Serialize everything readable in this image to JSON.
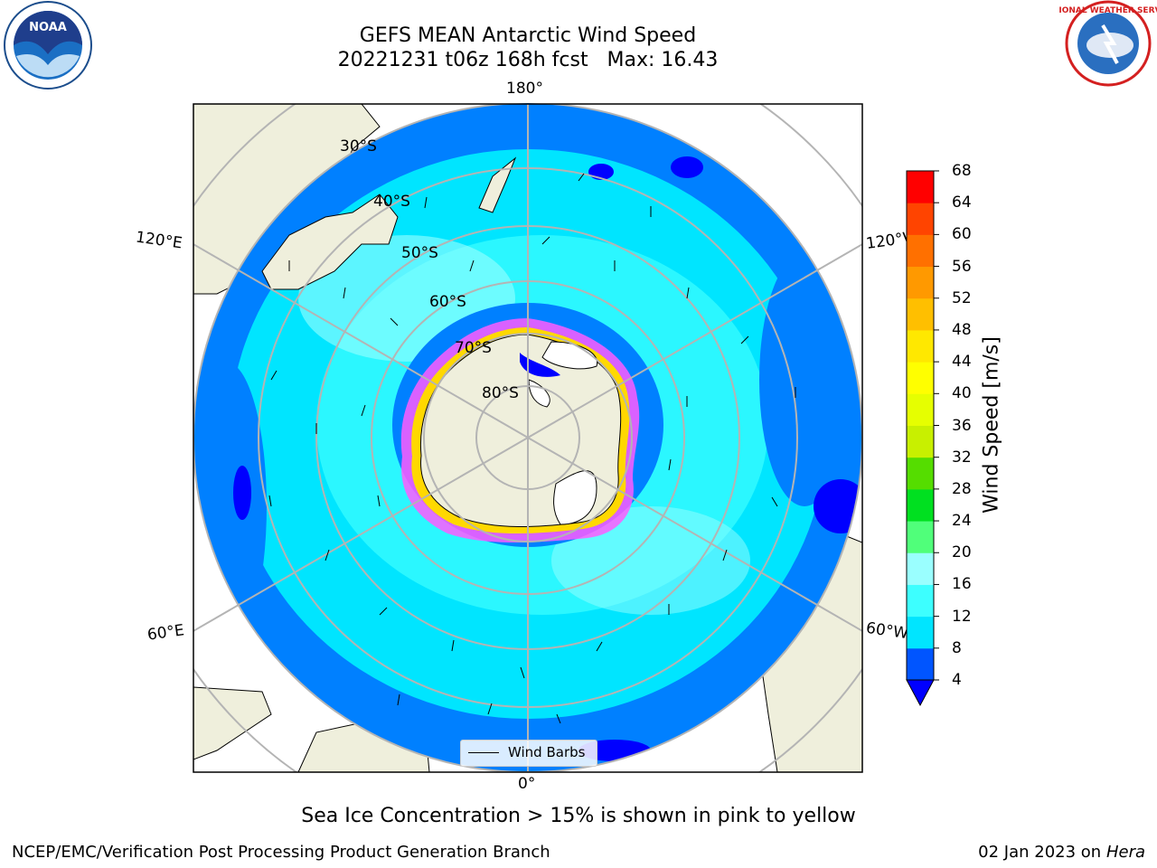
{
  "title": {
    "line1": "GEFS MEAN Antarctic Wind Speed",
    "line2": "20221231 t06z 168h fcst   Max: 16.43"
  },
  "map": {
    "projection": "south-polar-stereographic",
    "longitude_labels": {
      "top": "180°",
      "bottom": "0°",
      "upper_left": "120°E",
      "upper_right": "120°W",
      "lower_left": "60°E",
      "lower_right": "60°W"
    },
    "latitude_labels": [
      "30°S",
      "40°S",
      "50°S",
      "60°S",
      "70°S",
      "80°S"
    ],
    "legend": {
      "label": "Wind Barbs"
    }
  },
  "colorbar": {
    "label": "Wind Speed [m/s]",
    "ticks": [
      "4",
      "8",
      "12",
      "16",
      "20",
      "24",
      "28",
      "32",
      "36",
      "40",
      "44",
      "48",
      "52",
      "56",
      "60",
      "64",
      "68"
    ],
    "colors": [
      "#0055ff",
      "#00e5ff",
      "#3dffff",
      "#9affff",
      "#50ff7a",
      "#00e020",
      "#55dd00",
      "#c8f000",
      "#e6ff00",
      "#ffff00",
      "#ffe800",
      "#ffbf00",
      "#ff9900",
      "#ff7000",
      "#ff4400",
      "#ff0000"
    ],
    "extend_color": "#0000ff"
  },
  "logos": {
    "left": {
      "name": "noaa-logo",
      "text": "NOAA"
    },
    "right": {
      "name": "nws-logo",
      "text": "NATIONAL WEATHER SERVICE"
    }
  },
  "footnote": "Sea Ice Concentration > 15% is shown in pink to yellow",
  "credit": "NCEP/EMC/Verification Post Processing Product Generation Branch",
  "date": "02 Jan 2023 on",
  "machine": "Hera"
}
